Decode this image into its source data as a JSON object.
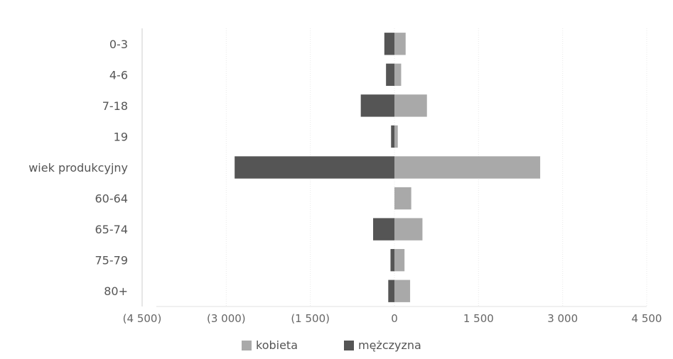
{
  "chart_data": {
    "type": "bar",
    "orientation": "horizontal",
    "stacked": "diverging",
    "categories": [
      "0-3",
      "4-6",
      "7-18",
      "19",
      "wiek produkcyjny",
      "60-64",
      "65-74",
      "75-79",
      "80+"
    ],
    "series": [
      {
        "name": "kobieta",
        "color": "#a9a9a9",
        "values": [
          200,
          120,
          580,
          60,
          2600,
          300,
          500,
          180,
          280
        ]
      },
      {
        "name": "mężczyzna",
        "color": "#555555",
        "values": [
          -180,
          -150,
          -600,
          -60,
          -2850,
          0,
          -380,
          -70,
          -110
        ]
      }
    ],
    "xlim": [
      -4500,
      4500
    ],
    "x_ticks": [
      -4500,
      -3000,
      -1500,
      0,
      1500,
      3000,
      4500
    ],
    "x_tick_labels": [
      "(4 500)",
      "(3 000)",
      "(1 500)",
      "0",
      "1 500",
      "3 000",
      "4 500"
    ],
    "legend": {
      "position": "bottom",
      "entries": [
        "kobieta",
        "mężczyzna"
      ]
    },
    "grid": true
  }
}
